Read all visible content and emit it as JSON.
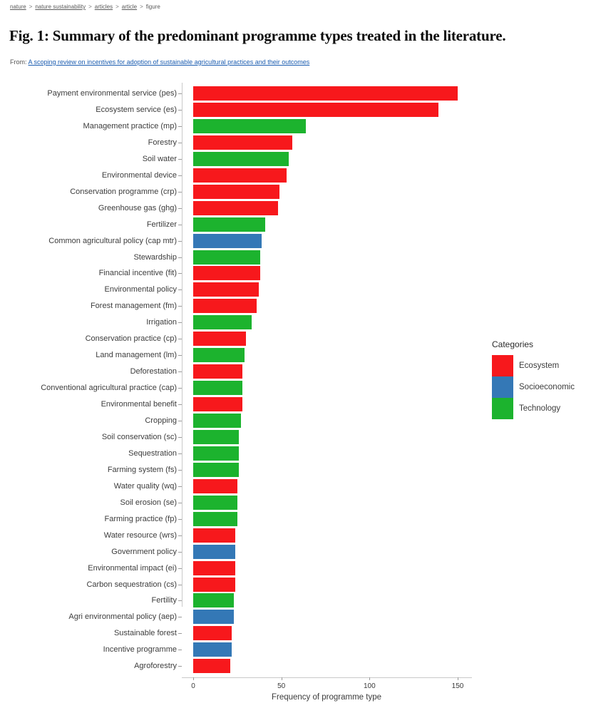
{
  "breadcrumb": {
    "separator": ">",
    "items": [
      {
        "label": "nature",
        "link": true
      },
      {
        "label": "nature sustainability",
        "link": true
      },
      {
        "label": "articles",
        "link": true
      },
      {
        "label": "article",
        "link": true
      },
      {
        "label": "figure",
        "link": false
      }
    ]
  },
  "header": {
    "title": "Fig. 1: Summary of the predominant programme types treated in the literature.",
    "from_prefix": "From:",
    "source_link": "A scoping review on incentives for adoption of sustainable agricultural practices and their outcomes"
  },
  "chart_data": {
    "type": "bar",
    "orientation": "horizontal",
    "xlabel": "Frequency of programme type",
    "ylabel": "",
    "xlim": [
      0,
      150
    ],
    "xticks": [
      0,
      50,
      100,
      150
    ],
    "grid": false,
    "legend": {
      "title": "Categories",
      "position": "right",
      "entries": [
        {
          "label": "Ecosystem",
          "color": "#f7181c"
        },
        {
          "label": "Socioeconomic",
          "color": "#3478b6"
        },
        {
          "label": "Technology",
          "color": "#1cb32e"
        }
      ]
    },
    "bars": [
      {
        "label": "Payment environmental service (pes)",
        "value": 150,
        "category": "Ecosystem"
      },
      {
        "label": "Ecosystem service (es)",
        "value": 139,
        "category": "Ecosystem"
      },
      {
        "label": "Management practice (mp)",
        "value": 64,
        "category": "Technology"
      },
      {
        "label": "Forestry",
        "value": 56,
        "category": "Ecosystem"
      },
      {
        "label": "Soil water",
        "value": 54,
        "category": "Technology"
      },
      {
        "label": "Environmental device",
        "value": 53,
        "category": "Ecosystem"
      },
      {
        "label": "Conservation programme (crp)",
        "value": 49,
        "category": "Ecosystem"
      },
      {
        "label": "Greenhouse gas (ghg)",
        "value": 48,
        "category": "Ecosystem"
      },
      {
        "label": "Fertilizer",
        "value": 41,
        "category": "Technology"
      },
      {
        "label": "Common agricultural policy (cap mtr)",
        "value": 39,
        "category": "Socioeconomic"
      },
      {
        "label": "Stewardship",
        "value": 38,
        "category": "Technology"
      },
      {
        "label": "Financial incentive (fit)",
        "value": 38,
        "category": "Ecosystem"
      },
      {
        "label": "Environmental policy",
        "value": 37,
        "category": "Ecosystem"
      },
      {
        "label": "Forest management (fm)",
        "value": 36,
        "category": "Ecosystem"
      },
      {
        "label": "Irrigation",
        "value": 33,
        "category": "Technology"
      },
      {
        "label": "Conservation practice (cp)",
        "value": 30,
        "category": "Ecosystem"
      },
      {
        "label": "Land management (lm)",
        "value": 29,
        "category": "Technology"
      },
      {
        "label": "Deforestation",
        "value": 28,
        "category": "Ecosystem"
      },
      {
        "label": "Conventional agricultural practice (cap)",
        "value": 28,
        "category": "Technology"
      },
      {
        "label": "Environmental benefit",
        "value": 28,
        "category": "Ecosystem"
      },
      {
        "label": "Cropping",
        "value": 27,
        "category": "Technology"
      },
      {
        "label": "Soil conservation (sc)",
        "value": 26,
        "category": "Technology"
      },
      {
        "label": "Sequestration",
        "value": 26,
        "category": "Technology"
      },
      {
        "label": "Farming system (fs)",
        "value": 26,
        "category": "Technology"
      },
      {
        "label": "Water quality (wq)",
        "value": 25,
        "category": "Ecosystem"
      },
      {
        "label": "Soil erosion (se)",
        "value": 25,
        "category": "Technology"
      },
      {
        "label": "Farming practice (fp)",
        "value": 25,
        "category": "Technology"
      },
      {
        "label": "Water resource (wrs)",
        "value": 24,
        "category": "Ecosystem"
      },
      {
        "label": "Government policy",
        "value": 24,
        "category": "Socioeconomic"
      },
      {
        "label": "Environmental impact (ei)",
        "value": 24,
        "category": "Ecosystem"
      },
      {
        "label": "Carbon sequestration (cs)",
        "value": 24,
        "category": "Ecosystem"
      },
      {
        "label": "Fertility",
        "value": 23,
        "category": "Technology"
      },
      {
        "label": "Agri environmental policy (aep)",
        "value": 23,
        "category": "Socioeconomic"
      },
      {
        "label": "Sustainable forest",
        "value": 22,
        "category": "Ecosystem"
      },
      {
        "label": "Incentive programme",
        "value": 22,
        "category": "Socioeconomic"
      },
      {
        "label": "Agroforestry",
        "value": 21,
        "category": "Ecosystem"
      }
    ]
  },
  "colors": {
    "axis_line": "#c9c9c9",
    "tick": "#9a9a9a",
    "text": "#3c3c3c",
    "link_blue": "#1a5cb0",
    "breadcrumb_gray": "#5a5a5a"
  }
}
